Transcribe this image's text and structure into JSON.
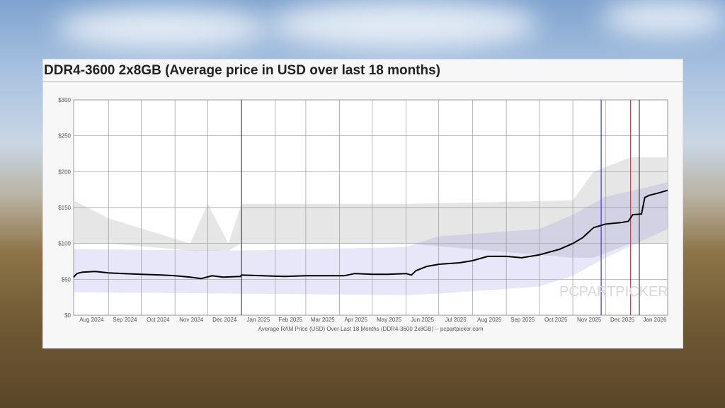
{
  "chart_data": {
    "type": "line",
    "title": "DDR4-3600 2x8GB (Average price in USD over last 18 months)",
    "caption": "Average RAM Price (USD) Over Last 18 Months (DDR4-3600 2x8GB) -- pcpartpicker.com",
    "watermark": "PCPARTPICKER",
    "xlim": [
      "2024-07-31",
      "2026-01-27"
    ],
    "ylim": [
      0,
      300
    ],
    "y_ticks": [
      "$0",
      "$50",
      "$100",
      "$150",
      "$200",
      "$250",
      "$300"
    ],
    "x_ticks": [
      {
        "label": "Aug 2024",
        "date": "2024-08-01"
      },
      {
        "label": "Sep 2024",
        "date": "2024-09-01"
      },
      {
        "label": "Oct 2024",
        "date": "2024-10-01"
      },
      {
        "label": "Nov 2024",
        "date": "2024-11-01"
      },
      {
        "label": "Dec 2024",
        "date": "2024-12-01"
      },
      {
        "label": "Jan 2025",
        "date": "2025-01-01"
      },
      {
        "label": "Feb 2025",
        "date": "2025-02-01"
      },
      {
        "label": "Mar 2025",
        "date": "2025-03-01"
      },
      {
        "label": "Apr 2025",
        "date": "2025-04-01"
      },
      {
        "label": "May 2025",
        "date": "2025-05-01"
      },
      {
        "label": "Jun 2025",
        "date": "2025-06-01"
      },
      {
        "label": "Jul 2025",
        "date": "2025-07-01"
      },
      {
        "label": "Aug 2025",
        "date": "2025-08-01"
      },
      {
        "label": "Sep 2025",
        "date": "2025-09-01"
      },
      {
        "label": "Oct 2025",
        "date": "2025-10-01"
      },
      {
        "label": "Nov 2025",
        "date": "2025-11-01"
      },
      {
        "label": "Dec 2025",
        "date": "2025-12-01"
      },
      {
        "label": "Jan 2026",
        "date": "2026-01-01"
      }
    ],
    "grid": true,
    "average_price": [
      [
        "2024-07-31",
        53
      ],
      [
        "2024-08-03",
        58
      ],
      [
        "2024-08-08",
        60
      ],
      [
        "2024-08-20",
        61
      ],
      [
        "2024-09-01",
        59
      ],
      [
        "2024-09-15",
        58
      ],
      [
        "2024-10-01",
        57
      ],
      [
        "2024-10-20",
        56
      ],
      [
        "2024-11-01",
        55
      ],
      [
        "2024-11-15",
        53
      ],
      [
        "2024-11-25",
        51
      ],
      [
        "2024-12-05",
        55
      ],
      [
        "2024-12-15",
        53
      ],
      [
        "2024-12-31",
        54
      ],
      [
        "2025-01-01",
        56
      ],
      [
        "2025-01-20",
        55
      ],
      [
        "2025-02-10",
        54
      ],
      [
        "2025-03-01",
        55
      ],
      [
        "2025-03-20",
        55
      ],
      [
        "2025-04-05",
        55
      ],
      [
        "2025-04-15",
        58
      ],
      [
        "2025-05-01",
        57
      ],
      [
        "2025-05-15",
        57
      ],
      [
        "2025-06-01",
        58
      ],
      [
        "2025-06-06",
        56
      ],
      [
        "2025-06-10",
        62
      ],
      [
        "2025-06-20",
        68
      ],
      [
        "2025-07-01",
        71
      ],
      [
        "2025-07-20",
        73
      ],
      [
        "2025-08-01",
        76
      ],
      [
        "2025-08-15",
        82
      ],
      [
        "2025-09-01",
        82
      ],
      [
        "2025-09-15",
        80
      ],
      [
        "2025-10-01",
        84
      ],
      [
        "2025-10-20",
        92
      ],
      [
        "2025-11-01",
        100
      ],
      [
        "2025-11-10",
        108
      ],
      [
        "2025-11-20",
        122
      ],
      [
        "2025-12-01",
        127
      ],
      [
        "2025-12-15",
        129
      ],
      [
        "2025-12-22",
        131
      ],
      [
        "2025-12-26",
        140
      ],
      [
        "2026-01-03",
        141
      ],
      [
        "2026-01-06",
        164
      ],
      [
        "2026-01-10",
        167
      ],
      [
        "2026-01-18",
        170
      ],
      [
        "2026-01-27",
        174
      ]
    ],
    "price_range_band": [
      [
        "2024-07-31",
        100,
        160
      ],
      [
        "2024-09-01",
        100,
        135
      ],
      [
        "2024-11-15",
        90,
        100
      ],
      [
        "2024-12-01",
        90,
        155
      ],
      [
        "2024-12-20",
        90,
        100
      ],
      [
        "2025-01-01",
        100,
        155
      ],
      [
        "2025-06-01",
        100,
        155
      ],
      [
        "2025-11-01",
        80,
        160
      ],
      [
        "2025-11-20",
        80,
        200
      ],
      [
        "2025-12-24",
        100,
        220
      ],
      [
        "2026-01-27",
        100,
        220
      ]
    ],
    "listing_range": [
      [
        "2024-07-31",
        32,
        92
      ],
      [
        "2025-01-01",
        30,
        90
      ],
      [
        "2025-06-01",
        28,
        95
      ],
      [
        "2025-07-01",
        30,
        110
      ],
      [
        "2025-10-01",
        40,
        120
      ],
      [
        "2025-11-01",
        55,
        140
      ],
      [
        "2025-12-01",
        80,
        165
      ],
      [
        "2026-01-27",
        120,
        185
      ]
    ],
    "markers": [
      {
        "date": "2025-01-01",
        "color": "#444444"
      },
      {
        "date": "2025-11-27",
        "color": "#3a3ad6"
      },
      {
        "date": "2025-12-24",
        "color": "#e03030"
      },
      {
        "date": "2026-01-01",
        "color": "#444444"
      }
    ],
    "colors": {
      "line": "#000000",
      "band": "#e2e2e2",
      "listing": "#7b7be0",
      "grid": "#999999"
    }
  }
}
